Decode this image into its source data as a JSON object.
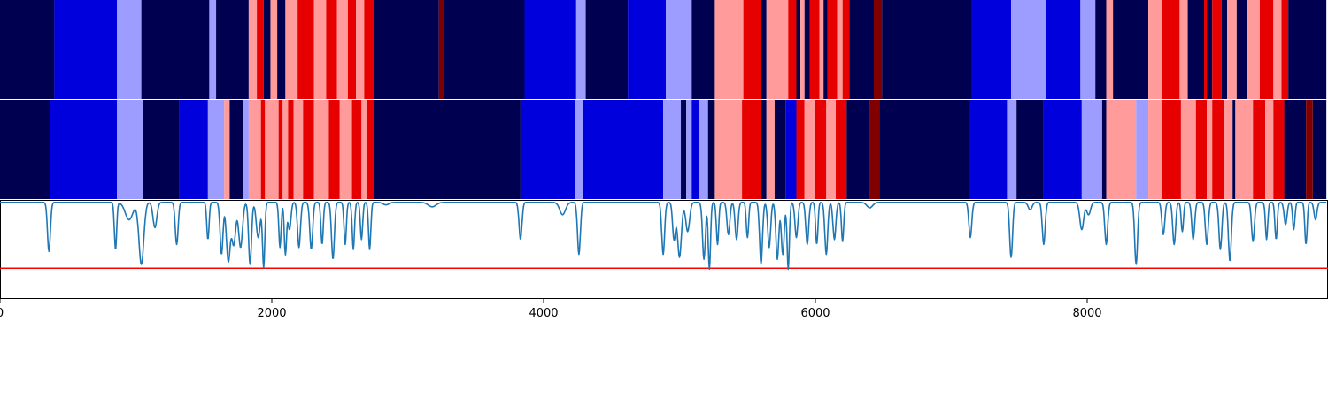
{
  "colors": {
    "very_dark_blue": "#000050",
    "blue": "#0000dd",
    "light_blue": "#9d9dff",
    "light_red": "#ff9b9b",
    "red": "#e60000",
    "dark_red": "#800000",
    "line": "#1f77b4",
    "threshold": "#ff0000"
  },
  "chart_data": [
    {
      "type": "heatmap",
      "row": 1,
      "xlim": [
        0,
        9760
      ],
      "segments": [
        {
          "x0": 0,
          "x1": 400,
          "c": "very_dark_blue"
        },
        {
          "x0": 400,
          "x1": 860,
          "c": "blue"
        },
        {
          "x0": 860,
          "x1": 1040,
          "c": "light_blue"
        },
        {
          "x0": 1040,
          "x1": 1540,
          "c": "very_dark_blue"
        },
        {
          "x0": 1540,
          "x1": 1590,
          "c": "light_blue"
        },
        {
          "x0": 1590,
          "x1": 1830,
          "c": "very_dark_blue"
        },
        {
          "x0": 1830,
          "x1": 1890,
          "c": "light_red"
        },
        {
          "x0": 1890,
          "x1": 1940,
          "c": "red"
        },
        {
          "x0": 1940,
          "x1": 1990,
          "c": "very_dark_blue"
        },
        {
          "x0": 1990,
          "x1": 2040,
          "c": "light_red"
        },
        {
          "x0": 2040,
          "x1": 2100,
          "c": "very_dark_blue"
        },
        {
          "x0": 2100,
          "x1": 2190,
          "c": "light_red"
        },
        {
          "x0": 2190,
          "x1": 2310,
          "c": "red"
        },
        {
          "x0": 2310,
          "x1": 2400,
          "c": "light_red"
        },
        {
          "x0": 2400,
          "x1": 2480,
          "c": "red"
        },
        {
          "x0": 2480,
          "x1": 2560,
          "c": "light_red"
        },
        {
          "x0": 2560,
          "x1": 2620,
          "c": "red"
        },
        {
          "x0": 2620,
          "x1": 2680,
          "c": "light_red"
        },
        {
          "x0": 2680,
          "x1": 2750,
          "c": "red"
        },
        {
          "x0": 2750,
          "x1": 3230,
          "c": "very_dark_blue"
        },
        {
          "x0": 3230,
          "x1": 3270,
          "c": "dark_red"
        },
        {
          "x0": 3270,
          "x1": 3860,
          "c": "very_dark_blue"
        },
        {
          "x0": 3860,
          "x1": 4240,
          "c": "blue"
        },
        {
          "x0": 4240,
          "x1": 4310,
          "c": "light_blue"
        },
        {
          "x0": 4310,
          "x1": 4620,
          "c": "very_dark_blue"
        },
        {
          "x0": 4620,
          "x1": 4900,
          "c": "blue"
        },
        {
          "x0": 4900,
          "x1": 5090,
          "c": "light_blue"
        },
        {
          "x0": 5090,
          "x1": 5260,
          "c": "very_dark_blue"
        },
        {
          "x0": 5260,
          "x1": 5470,
          "c": "light_red"
        },
        {
          "x0": 5470,
          "x1": 5600,
          "c": "red"
        },
        {
          "x0": 5600,
          "x1": 5640,
          "c": "very_dark_blue"
        },
        {
          "x0": 5640,
          "x1": 5800,
          "c": "light_red"
        },
        {
          "x0": 5800,
          "x1": 5860,
          "c": "red"
        },
        {
          "x0": 5860,
          "x1": 5890,
          "c": "very_dark_blue"
        },
        {
          "x0": 5890,
          "x1": 5920,
          "c": "light_red"
        },
        {
          "x0": 5920,
          "x1": 5960,
          "c": "very_dark_blue"
        },
        {
          "x0": 5960,
          "x1": 6030,
          "c": "red"
        },
        {
          "x0": 6030,
          "x1": 6060,
          "c": "light_red"
        },
        {
          "x0": 6060,
          "x1": 6090,
          "c": "very_dark_blue"
        },
        {
          "x0": 6090,
          "x1": 6160,
          "c": "red"
        },
        {
          "x0": 6160,
          "x1": 6200,
          "c": "light_red"
        },
        {
          "x0": 6200,
          "x1": 6250,
          "c": "red"
        },
        {
          "x0": 6250,
          "x1": 6430,
          "c": "very_dark_blue"
        },
        {
          "x0": 6430,
          "x1": 6490,
          "c": "dark_red"
        },
        {
          "x0": 6490,
          "x1": 7150,
          "c": "very_dark_blue"
        },
        {
          "x0": 7150,
          "x1": 7440,
          "c": "blue"
        },
        {
          "x0": 7440,
          "x1": 7700,
          "c": "light_blue"
        },
        {
          "x0": 7700,
          "x1": 7950,
          "c": "blue"
        },
        {
          "x0": 7950,
          "x1": 8060,
          "c": "light_blue"
        },
        {
          "x0": 8060,
          "x1": 8140,
          "c": "very_dark_blue"
        },
        {
          "x0": 8140,
          "x1": 8190,
          "c": "light_red"
        },
        {
          "x0": 8190,
          "x1": 8450,
          "c": "very_dark_blue"
        },
        {
          "x0": 8450,
          "x1": 8550,
          "c": "light_red"
        },
        {
          "x0": 8550,
          "x1": 8680,
          "c": "red"
        },
        {
          "x0": 8680,
          "x1": 8740,
          "c": "light_red"
        },
        {
          "x0": 8740,
          "x1": 8860,
          "c": "very_dark_blue"
        },
        {
          "x0": 8860,
          "x1": 8880,
          "c": "red"
        },
        {
          "x0": 8880,
          "x1": 8920,
          "c": "very_dark_blue"
        },
        {
          "x0": 8920,
          "x1": 8990,
          "c": "red"
        },
        {
          "x0": 8990,
          "x1": 9030,
          "c": "very_dark_blue"
        },
        {
          "x0": 9030,
          "x1": 9100,
          "c": "light_red"
        },
        {
          "x0": 9100,
          "x1": 9180,
          "c": "very_dark_blue"
        },
        {
          "x0": 9180,
          "x1": 9270,
          "c": "light_red"
        },
        {
          "x0": 9270,
          "x1": 9370,
          "c": "red"
        },
        {
          "x0": 9370,
          "x1": 9430,
          "c": "light_red"
        },
        {
          "x0": 9430,
          "x1": 9480,
          "c": "red"
        },
        {
          "x0": 9480,
          "x1": 9760,
          "c": "very_dark_blue"
        }
      ]
    },
    {
      "type": "heatmap",
      "row": 2,
      "xlim": [
        0,
        9760
      ],
      "segments": [
        {
          "x0": 0,
          "x1": 370,
          "c": "very_dark_blue"
        },
        {
          "x0": 370,
          "x1": 860,
          "c": "blue"
        },
        {
          "x0": 860,
          "x1": 1050,
          "c": "light_blue"
        },
        {
          "x0": 1050,
          "x1": 1320,
          "c": "very_dark_blue"
        },
        {
          "x0": 1320,
          "x1": 1530,
          "c": "blue"
        },
        {
          "x0": 1530,
          "x1": 1650,
          "c": "light_blue"
        },
        {
          "x0": 1650,
          "x1": 1690,
          "c": "light_red"
        },
        {
          "x0": 1690,
          "x1": 1790,
          "c": "very_dark_blue"
        },
        {
          "x0": 1790,
          "x1": 1830,
          "c": "light_blue"
        },
        {
          "x0": 1830,
          "x1": 1920,
          "c": "light_red"
        },
        {
          "x0": 1920,
          "x1": 1950,
          "c": "red"
        },
        {
          "x0": 1950,
          "x1": 2050,
          "c": "light_red"
        },
        {
          "x0": 2050,
          "x1": 2080,
          "c": "red"
        },
        {
          "x0": 2080,
          "x1": 2120,
          "c": "light_red"
        },
        {
          "x0": 2120,
          "x1": 2160,
          "c": "red"
        },
        {
          "x0": 2160,
          "x1": 2230,
          "c": "light_red"
        },
        {
          "x0": 2230,
          "x1": 2310,
          "c": "red"
        },
        {
          "x0": 2310,
          "x1": 2420,
          "c": "light_red"
        },
        {
          "x0": 2420,
          "x1": 2500,
          "c": "red"
        },
        {
          "x0": 2500,
          "x1": 2590,
          "c": "light_red"
        },
        {
          "x0": 2590,
          "x1": 2660,
          "c": "red"
        },
        {
          "x0": 2660,
          "x1": 2700,
          "c": "light_red"
        },
        {
          "x0": 2700,
          "x1": 2750,
          "c": "red"
        },
        {
          "x0": 2750,
          "x1": 3830,
          "c": "very_dark_blue"
        },
        {
          "x0": 3830,
          "x1": 4230,
          "c": "blue"
        },
        {
          "x0": 4230,
          "x1": 4290,
          "c": "light_blue"
        },
        {
          "x0": 4290,
          "x1": 4880,
          "c": "blue"
        },
        {
          "x0": 4880,
          "x1": 5010,
          "c": "light_blue"
        },
        {
          "x0": 5010,
          "x1": 5050,
          "c": "very_dark_blue"
        },
        {
          "x0": 5050,
          "x1": 5090,
          "c": "light_blue"
        },
        {
          "x0": 5090,
          "x1": 5140,
          "c": "blue"
        },
        {
          "x0": 5140,
          "x1": 5210,
          "c": "light_blue"
        },
        {
          "x0": 5210,
          "x1": 5260,
          "c": "very_dark_blue"
        },
        {
          "x0": 5260,
          "x1": 5460,
          "c": "light_red"
        },
        {
          "x0": 5460,
          "x1": 5600,
          "c": "red"
        },
        {
          "x0": 5600,
          "x1": 5640,
          "c": "very_dark_blue"
        },
        {
          "x0": 5640,
          "x1": 5700,
          "c": "light_red"
        },
        {
          "x0": 5700,
          "x1": 5780,
          "c": "very_dark_blue"
        },
        {
          "x0": 5780,
          "x1": 5860,
          "c": "blue"
        },
        {
          "x0": 5860,
          "x1": 5920,
          "c": "red"
        },
        {
          "x0": 5920,
          "x1": 6000,
          "c": "light_red"
        },
        {
          "x0": 6000,
          "x1": 6080,
          "c": "red"
        },
        {
          "x0": 6080,
          "x1": 6150,
          "c": "light_red"
        },
        {
          "x0": 6150,
          "x1": 6230,
          "c": "red"
        },
        {
          "x0": 6230,
          "x1": 6400,
          "c": "very_dark_blue"
        },
        {
          "x0": 6400,
          "x1": 6470,
          "c": "dark_red"
        },
        {
          "x0": 6470,
          "x1": 7130,
          "c": "very_dark_blue"
        },
        {
          "x0": 7130,
          "x1": 7410,
          "c": "blue"
        },
        {
          "x0": 7410,
          "x1": 7480,
          "c": "light_blue"
        },
        {
          "x0": 7480,
          "x1": 7680,
          "c": "very_dark_blue"
        },
        {
          "x0": 7680,
          "x1": 7960,
          "c": "blue"
        },
        {
          "x0": 7960,
          "x1": 8110,
          "c": "light_blue"
        },
        {
          "x0": 8110,
          "x1": 8140,
          "c": "very_dark_blue"
        },
        {
          "x0": 8140,
          "x1": 8360,
          "c": "light_red"
        },
        {
          "x0": 8360,
          "x1": 8450,
          "c": "light_blue"
        },
        {
          "x0": 8450,
          "x1": 8550,
          "c": "light_red"
        },
        {
          "x0": 8550,
          "x1": 8690,
          "c": "red"
        },
        {
          "x0": 8690,
          "x1": 8800,
          "c": "light_red"
        },
        {
          "x0": 8800,
          "x1": 8880,
          "c": "red"
        },
        {
          "x0": 8880,
          "x1": 8920,
          "c": "light_red"
        },
        {
          "x0": 8920,
          "x1": 9010,
          "c": "red"
        },
        {
          "x0": 9010,
          "x1": 9070,
          "c": "light_red"
        },
        {
          "x0": 9070,
          "x1": 9090,
          "c": "very_dark_blue"
        },
        {
          "x0": 9090,
          "x1": 9220,
          "c": "light_red"
        },
        {
          "x0": 9220,
          "x1": 9310,
          "c": "red"
        },
        {
          "x0": 9310,
          "x1": 9370,
          "c": "light_red"
        },
        {
          "x0": 9370,
          "x1": 9450,
          "c": "red"
        },
        {
          "x0": 9450,
          "x1": 9610,
          "c": "very_dark_blue"
        },
        {
          "x0": 9610,
          "x1": 9660,
          "c": "dark_red"
        },
        {
          "x0": 9660,
          "x1": 9760,
          "c": "very_dark_blue"
        }
      ]
    },
    {
      "type": "line",
      "xlim": [
        0,
        9760
      ],
      "ylim": [
        0,
        1
      ],
      "grid": false,
      "baseline": 0.975,
      "threshold": 0.31,
      "x_ticks": [
        0,
        2000,
        4000,
        6000,
        8000
      ],
      "x_tick_labels": [
        "0",
        "2000",
        "4000",
        "6000",
        "8000"
      ],
      "dips": [
        [
          360,
          0.48,
          15
        ],
        [
          850,
          0.5,
          12
        ],
        [
          950,
          0.8,
          40
        ],
        [
          1040,
          0.35,
          25
        ],
        [
          1140,
          0.72,
          20
        ],
        [
          1300,
          0.55,
          15
        ],
        [
          1530,
          0.6,
          12
        ],
        [
          1630,
          0.45,
          15
        ],
        [
          1680,
          0.38,
          20
        ],
        [
          1720,
          0.55,
          20
        ],
        [
          1770,
          0.52,
          20
        ],
        [
          1840,
          0.35,
          15
        ],
        [
          1900,
          0.62,
          20
        ],
        [
          1940,
          0.32,
          12
        ],
        [
          2060,
          0.52,
          12
        ],
        [
          2100,
          0.45,
          12
        ],
        [
          2130,
          0.7,
          15
        ],
        [
          2200,
          0.52,
          15
        ],
        [
          2290,
          0.5,
          15
        ],
        [
          2370,
          0.55,
          12
        ],
        [
          2450,
          0.4,
          15
        ],
        [
          2540,
          0.55,
          12
        ],
        [
          2600,
          0.5,
          12
        ],
        [
          2660,
          0.6,
          12
        ],
        [
          2720,
          0.5,
          12
        ],
        [
          2840,
          0.95,
          30
        ],
        [
          3180,
          0.93,
          40
        ],
        [
          3830,
          0.6,
          15
        ],
        [
          4140,
          0.85,
          30
        ],
        [
          4260,
          0.45,
          15
        ],
        [
          4880,
          0.45,
          15
        ],
        [
          4960,
          0.6,
          15
        ],
        [
          5000,
          0.42,
          20
        ],
        [
          5060,
          0.68,
          20
        ],
        [
          5180,
          0.4,
          15
        ],
        [
          5220,
          0.3,
          12
        ],
        [
          5280,
          0.55,
          12
        ],
        [
          5360,
          0.65,
          15
        ],
        [
          5420,
          0.6,
          15
        ],
        [
          5500,
          0.62,
          12
        ],
        [
          5600,
          0.35,
          15
        ],
        [
          5660,
          0.52,
          15
        ],
        [
          5720,
          0.4,
          15
        ],
        [
          5760,
          0.45,
          15
        ],
        [
          5800,
          0.3,
          12
        ],
        [
          5860,
          0.62,
          15
        ],
        [
          5940,
          0.55,
          15
        ],
        [
          6010,
          0.55,
          12
        ],
        [
          6080,
          0.45,
          15
        ],
        [
          6140,
          0.6,
          15
        ],
        [
          6200,
          0.58,
          12
        ],
        [
          6400,
          0.92,
          30
        ],
        [
          7140,
          0.62,
          15
        ],
        [
          7440,
          0.42,
          15
        ],
        [
          7580,
          0.9,
          20
        ],
        [
          7680,
          0.55,
          15
        ],
        [
          7960,
          0.7,
          20
        ],
        [
          8010,
          0.85,
          20
        ],
        [
          8140,
          0.55,
          15
        ],
        [
          8360,
          0.35,
          15
        ],
        [
          8560,
          0.65,
          15
        ],
        [
          8640,
          0.55,
          15
        ],
        [
          8700,
          0.68,
          12
        ],
        [
          8780,
          0.6,
          15
        ],
        [
          8880,
          0.55,
          15
        ],
        [
          8980,
          0.5,
          15
        ],
        [
          9050,
          0.38,
          15
        ],
        [
          9220,
          0.58,
          15
        ],
        [
          9320,
          0.6,
          12
        ],
        [
          9390,
          0.6,
          12
        ],
        [
          9460,
          0.75,
          15
        ],
        [
          9520,
          0.7,
          12
        ],
        [
          9610,
          0.55,
          12
        ],
        [
          9680,
          0.8,
          15
        ]
      ]
    }
  ]
}
